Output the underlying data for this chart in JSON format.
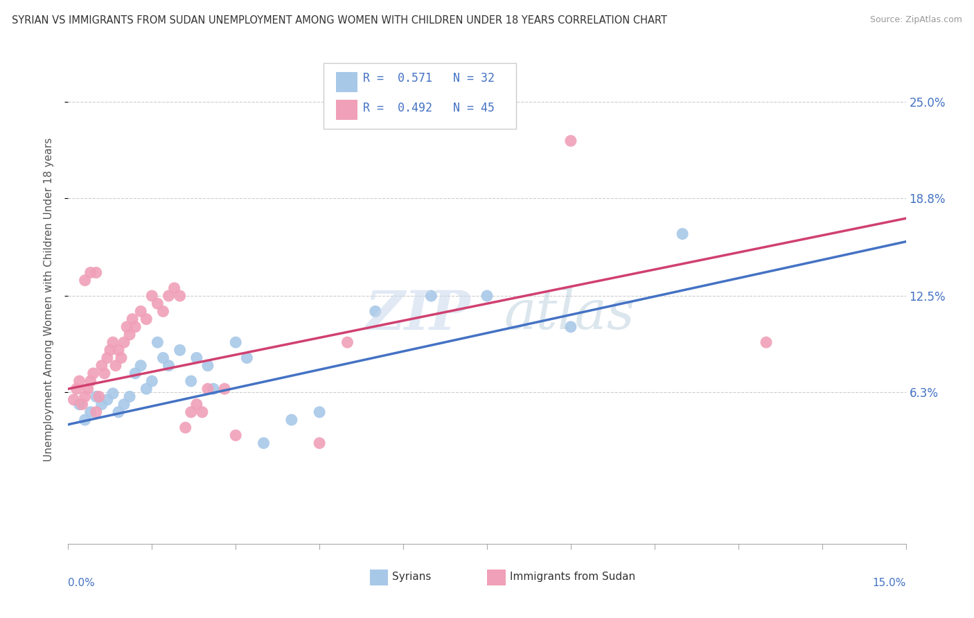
{
  "title": "SYRIAN VS IMMIGRANTS FROM SUDAN UNEMPLOYMENT AMONG WOMEN WITH CHILDREN UNDER 18 YEARS CORRELATION CHART",
  "source": "Source: ZipAtlas.com",
  "ylabel": "Unemployment Among Women with Children Under 18 years",
  "xlim": [
    0.0,
    15.0
  ],
  "ylim": [
    -3.5,
    28.0
  ],
  "yticks": [
    6.3,
    12.5,
    18.8,
    25.0
  ],
  "ytick_labels": [
    "6.3%",
    "12.5%",
    "18.8%",
    "25.0%"
  ],
  "legend_label1": "Syrians",
  "legend_label2": "Immigrants from Sudan",
  "R1": 0.571,
  "N1": 32,
  "R2": 0.492,
  "N2": 45,
  "color_blue": "#a8c8e8",
  "color_pink": "#f0a0b8",
  "line_color_blue": "#4472c4",
  "line_color_pink": "#d04070",
  "blue_points": [
    [
      0.2,
      5.5
    ],
    [
      0.3,
      4.5
    ],
    [
      0.4,
      5.0
    ],
    [
      0.5,
      6.0
    ],
    [
      0.6,
      5.5
    ],
    [
      0.7,
      5.8
    ],
    [
      0.8,
      6.2
    ],
    [
      0.9,
      5.0
    ],
    [
      1.0,
      5.5
    ],
    [
      1.1,
      6.0
    ],
    [
      1.2,
      7.5
    ],
    [
      1.3,
      8.0
    ],
    [
      1.4,
      6.5
    ],
    [
      1.5,
      7.0
    ],
    [
      1.6,
      9.5
    ],
    [
      1.7,
      8.5
    ],
    [
      1.8,
      8.0
    ],
    [
      2.0,
      9.0
    ],
    [
      2.2,
      7.0
    ],
    [
      2.3,
      8.5
    ],
    [
      2.5,
      8.0
    ],
    [
      2.6,
      6.5
    ],
    [
      3.0,
      9.5
    ],
    [
      3.2,
      8.5
    ],
    [
      3.5,
      3.0
    ],
    [
      4.0,
      4.5
    ],
    [
      4.5,
      5.0
    ],
    [
      5.5,
      11.5
    ],
    [
      6.5,
      12.5
    ],
    [
      7.5,
      12.5
    ],
    [
      9.0,
      10.5
    ],
    [
      11.0,
      16.5
    ]
  ],
  "pink_points": [
    [
      0.1,
      5.8
    ],
    [
      0.15,
      6.5
    ],
    [
      0.2,
      7.0
    ],
    [
      0.25,
      5.5
    ],
    [
      0.3,
      6.0
    ],
    [
      0.35,
      6.5
    ],
    [
      0.4,
      7.0
    ],
    [
      0.45,
      7.5
    ],
    [
      0.5,
      5.0
    ],
    [
      0.55,
      6.0
    ],
    [
      0.6,
      8.0
    ],
    [
      0.65,
      7.5
    ],
    [
      0.7,
      8.5
    ],
    [
      0.75,
      9.0
    ],
    [
      0.8,
      9.5
    ],
    [
      0.85,
      8.0
    ],
    [
      0.9,
      9.0
    ],
    [
      0.95,
      8.5
    ],
    [
      1.0,
      9.5
    ],
    [
      1.05,
      10.5
    ],
    [
      1.1,
      10.0
    ],
    [
      1.15,
      11.0
    ],
    [
      1.2,
      10.5
    ],
    [
      1.3,
      11.5
    ],
    [
      1.4,
      11.0
    ],
    [
      1.5,
      12.5
    ],
    [
      1.6,
      12.0
    ],
    [
      1.7,
      11.5
    ],
    [
      1.8,
      12.5
    ],
    [
      1.9,
      13.0
    ],
    [
      2.0,
      12.5
    ],
    [
      2.1,
      4.0
    ],
    [
      2.2,
      5.0
    ],
    [
      2.3,
      5.5
    ],
    [
      2.4,
      5.0
    ],
    [
      2.5,
      6.5
    ],
    [
      2.8,
      6.5
    ],
    [
      3.0,
      3.5
    ],
    [
      4.5,
      3.0
    ],
    [
      0.3,
      13.5
    ],
    [
      0.4,
      14.0
    ],
    [
      0.5,
      14.0
    ],
    [
      9.0,
      22.5
    ],
    [
      12.5,
      9.5
    ],
    [
      5.0,
      9.5
    ]
  ],
  "blue_line": {
    "x0": 0,
    "y0": 4.2,
    "x1": 15,
    "y1": 16.0
  },
  "pink_line": {
    "x0": 0,
    "y0": 6.5,
    "x1": 15,
    "y1": 17.5
  }
}
